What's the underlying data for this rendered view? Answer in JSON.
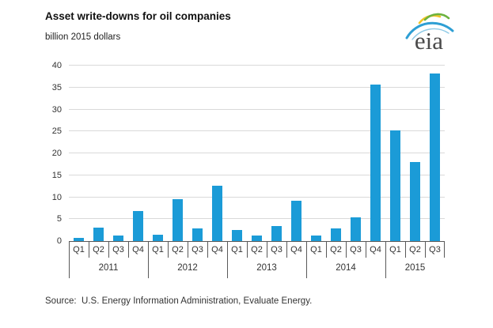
{
  "header": {
    "title": "Asset write-downs for oil companies",
    "subtitle": "billion 2015 dollars"
  },
  "logo": {
    "text": "eia"
  },
  "chart_data": {
    "type": "bar",
    "title": "Asset write-downs for oil companies",
    "subtitle": "billion 2015 dollars",
    "xlabel": "",
    "ylabel": "billion 2015 dollars",
    "ylim": [
      0,
      40
    ],
    "ytick_step": 5,
    "yticks": [
      0,
      5,
      10,
      15,
      20,
      25,
      30,
      35,
      40
    ],
    "grid": "horizontal",
    "legend": "none",
    "bar_color": "#1b9bd7",
    "gridline_color": "#d9d9d9",
    "axis_color": "#595959",
    "groups": [
      {
        "year": "2011",
        "quarters": [
          "Q1",
          "Q2",
          "Q3",
          "Q4"
        ],
        "values": [
          0.8,
          3.1,
          1.3,
          6.8
        ]
      },
      {
        "year": "2012",
        "quarters": [
          "Q1",
          "Q2",
          "Q3",
          "Q4"
        ],
        "values": [
          1.4,
          9.5,
          2.9,
          12.6
        ]
      },
      {
        "year": "2013",
        "quarters": [
          "Q1",
          "Q2",
          "Q3",
          "Q4"
        ],
        "values": [
          2.5,
          1.2,
          3.4,
          9.1
        ]
      },
      {
        "year": "2014",
        "quarters": [
          "Q1",
          "Q2",
          "Q3",
          "Q4"
        ],
        "values": [
          1.3,
          2.9,
          5.4,
          35.6
        ]
      },
      {
        "year": "2015",
        "quarters": [
          "Q1",
          "Q2",
          "Q3"
        ],
        "values": [
          25.2,
          18.0,
          38.2
        ]
      }
    ]
  },
  "footer": {
    "source": "Source:  U.S. Energy Information Administration, Evaluate Energy."
  }
}
